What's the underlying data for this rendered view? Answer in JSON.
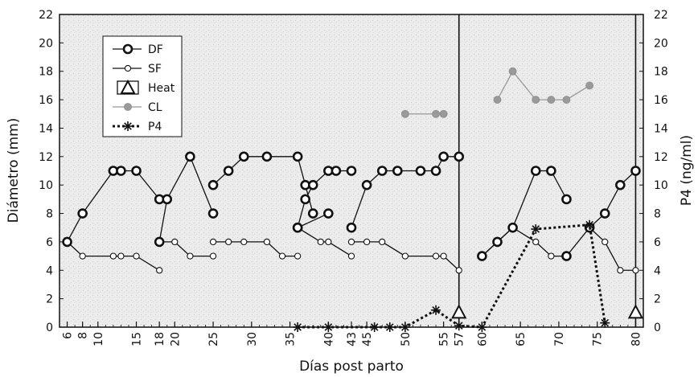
{
  "chart_data": {
    "type": "line",
    "xlabel": "Días post parto",
    "ylabel": "Diámetro (mm)",
    "y2label": "P4 (ng/ml)",
    "xlim": [
      5,
      81
    ],
    "ylim": [
      0,
      22
    ],
    "y2lim": [
      0,
      22
    ],
    "xticks": [
      6,
      8,
      10,
      15,
      18,
      20,
      25,
      30,
      35,
      40,
      43,
      45,
      50,
      55,
      57,
      60,
      65,
      70,
      75,
      80
    ],
    "yticks": [
      0,
      2,
      4,
      6,
      8,
      10,
      12,
      14,
      16,
      18,
      20,
      22
    ],
    "grid": false,
    "legend_position": "top-left",
    "vertical_lines_x": [
      57,
      80
    ],
    "series": [
      {
        "name": "DF",
        "marker": "open-circle-thick",
        "color": "#111111",
        "segments": [
          [
            [
              6,
              6
            ],
            [
              8,
              8
            ],
            [
              12,
              11
            ],
            [
              13,
              11
            ],
            [
              15,
              11
            ],
            [
              18,
              9
            ]
          ],
          [
            [
              18,
              6
            ],
            [
              19,
              9
            ],
            [
              22,
              12
            ],
            [
              25,
              8
            ]
          ],
          [
            [
              25,
              10
            ],
            [
              27,
              11
            ],
            [
              29,
              12
            ],
            [
              32,
              12
            ],
            [
              36,
              12
            ],
            [
              37,
              10
            ],
            [
              38,
              8
            ]
          ],
          [
            [
              36,
              7
            ],
            [
              37,
              9
            ],
            [
              38,
              10
            ],
            [
              40,
              11
            ],
            [
              41,
              11
            ],
            [
              43,
              11
            ]
          ],
          [
            [
              36,
              7
            ],
            [
              40,
              8
            ]
          ],
          [
            [
              43,
              7
            ],
            [
              45,
              10
            ],
            [
              47,
              11
            ],
            [
              49,
              11
            ],
            [
              52,
              11
            ],
            [
              54,
              11
            ],
            [
              55,
              12
            ],
            [
              57,
              12
            ]
          ],
          [
            [
              60,
              5
            ],
            [
              62,
              6
            ],
            [
              64,
              7
            ],
            [
              67,
              11
            ],
            [
              69,
              11
            ],
            [
              71,
              9
            ]
          ],
          [
            [
              71,
              5
            ],
            [
              74,
              7
            ],
            [
              76,
              8
            ],
            [
              78,
              10
            ],
            [
              80,
              11
            ]
          ]
        ]
      },
      {
        "name": "SF",
        "marker": "open-circle-thin",
        "color": "#111111",
        "segments": [
          [
            [
              6,
              6
            ],
            [
              8,
              5
            ],
            [
              12,
              5
            ],
            [
              13,
              5
            ],
            [
              15,
              5
            ],
            [
              18,
              4
            ]
          ],
          [
            [
              18,
              6
            ],
            [
              20,
              6
            ],
            [
              22,
              5
            ],
            [
              25,
              5
            ]
          ],
          [
            [
              25,
              6
            ],
            [
              27,
              6
            ],
            [
              29,
              6
            ],
            [
              32,
              6
            ],
            [
              34,
              5
            ],
            [
              36,
              5
            ]
          ],
          [
            [
              36,
              7
            ],
            [
              39,
              6
            ],
            [
              40,
              6
            ],
            [
              43,
              5
            ]
          ],
          [
            [
              43,
              6
            ],
            [
              45,
              6
            ],
            [
              47,
              6
            ],
            [
              50,
              5
            ],
            [
              54,
              5
            ],
            [
              55,
              5
            ],
            [
              57,
              4
            ]
          ],
          [
            [
              60,
              5
            ],
            [
              62,
              6
            ],
            [
              64,
              7
            ],
            [
              67,
              6
            ],
            [
              69,
              5
            ],
            [
              71,
              5
            ]
          ],
          [
            [
              74,
              7
            ],
            [
              76,
              6
            ],
            [
              78,
              4
            ],
            [
              80,
              4
            ]
          ]
        ]
      },
      {
        "name": "Heat",
        "marker": "open-triangle",
        "color": "#111111",
        "points": [
          [
            57,
            1
          ],
          [
            80,
            1
          ]
        ]
      },
      {
        "name": "CL",
        "marker": "filled-circle-gray",
        "color": "#999999",
        "segments": [
          [
            [
              50,
              15
            ],
            [
              54,
              15
            ],
            [
              55,
              15
            ]
          ],
          [
            [
              62,
              16
            ],
            [
              64,
              18
            ],
            [
              67,
              16
            ],
            [
              69,
              16
            ],
            [
              71,
              16
            ],
            [
              74,
              17
            ]
          ]
        ]
      },
      {
        "name": "P4",
        "marker": "asterisk",
        "color": "#111111",
        "line_style": "dotted",
        "segments": [
          [
            [
              36,
              0
            ],
            [
              40,
              0
            ],
            [
              46,
              0
            ],
            [
              48,
              0
            ],
            [
              50,
              0
            ],
            [
              54,
              1.2
            ],
            [
              57,
              0.1
            ],
            [
              60,
              0
            ],
            [
              67,
              6.9
            ],
            [
              74,
              7.2
            ],
            [
              76,
              0.3
            ]
          ]
        ]
      }
    ]
  }
}
